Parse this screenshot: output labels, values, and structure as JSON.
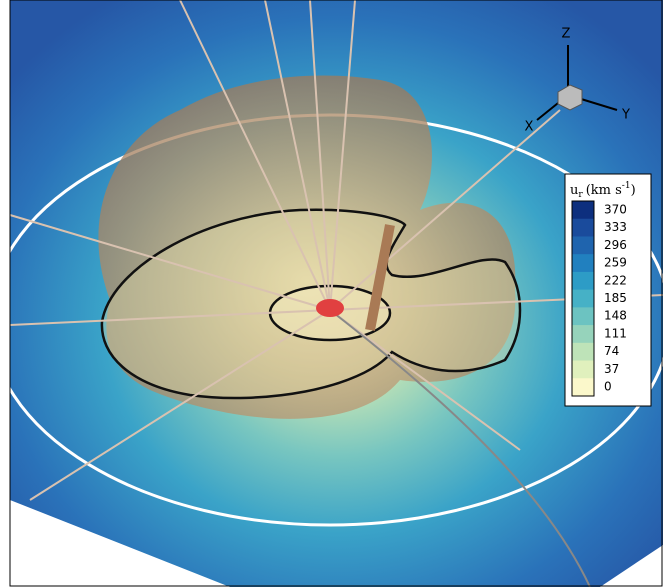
{
  "axes": {
    "z": "Z",
    "x": "X",
    "y": "Y"
  },
  "colorbar": {
    "title_symbol": "u",
    "title_subscript": "r",
    "title_unit": "(km s",
    "title_superscript": "-1",
    "title_close": ")",
    "ticks": [
      370,
      333,
      296,
      259,
      222,
      185,
      148,
      111,
      74,
      37,
      0
    ],
    "colors": [
      "#0d2f7e",
      "#1a4b9c",
      "#1f64ae",
      "#2180bf",
      "#2d9cc6",
      "#46b1c6",
      "#6cc3c1",
      "#96d3bb",
      "#bee3b8",
      "#e0f0bd",
      "#fbf8cb"
    ]
  }
}
